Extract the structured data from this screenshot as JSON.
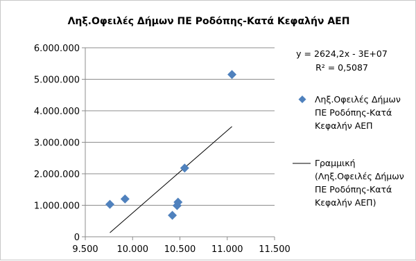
{
  "chart_data": {
    "type": "scatter",
    "title": "Ληξ.Οφειλές Δήμων ΠΕ Ροδόπης-Κατά Κεφαλήν ΑΕΠ",
    "xlim": [
      9500,
      11500
    ],
    "ylim": [
      0,
      6000000
    ],
    "x_ticks": [
      "9.500",
      "10.000",
      "10.500",
      "11.000",
      "11.500"
    ],
    "y_ticks": [
      "0",
      "1.000.000",
      "2.000.000",
      "3.000.000",
      "4.000.000",
      "5.000.000",
      "6.000.000"
    ],
    "grid": "horizontal",
    "legend_position": "right",
    "series": [
      {
        "name": "Ληξ.Οφειλές Δήμων ΠΕ Ροδόπης-Κατά Κεφαλήν ΑΕΠ",
        "color": "#4f81bd",
        "marker": "diamond",
        "x": [
          9760,
          9920,
          10420,
          10470,
          10480,
          10550,
          11050
        ],
        "y": [
          1030000,
          1200000,
          680000,
          990000,
          1100000,
          2180000,
          5150000
        ]
      }
    ],
    "trendline": {
      "name": "Γραμμική (Ληξ.Οφειλές Δήμων ΠΕ Ροδόπης-Κατά Κεφαλήν ΑΕΠ)",
      "type": "linear",
      "color": "#000000",
      "x_range": [
        9760,
        11050
      ],
      "y_range": [
        130000,
        3500000
      ],
      "equation": "y = 2624,2x - 3E+07",
      "r_squared": "R² = 0,5087"
    },
    "legend": {
      "series_label_lines": [
        "Ληξ.Οφειλές Δήμων",
        "ΠΕ Ροδόπης-Κατά",
        "Κεφαλήν ΑΕΠ"
      ],
      "trend_label_lines": [
        "Γραμμική",
        "(Ληξ.Οφειλές Δήμων",
        "ΠΕ Ροδόπης-Κατά",
        "Κεφαλήν ΑΕΠ)"
      ]
    }
  }
}
